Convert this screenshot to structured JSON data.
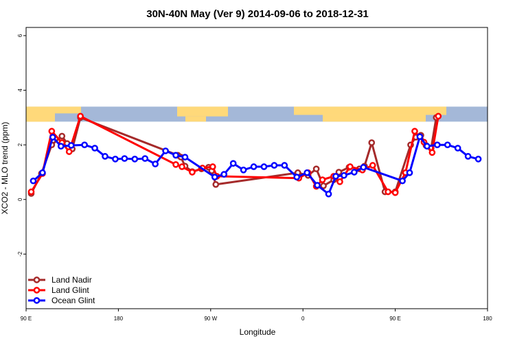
{
  "chart_data": {
    "type": "line",
    "title": "30N-40N May (Ver 9)   2014-09-06 to 2018-12-31",
    "xlabel": "Longitude",
    "ylabel": "XCO2 - MLO trend (ppm)",
    "xlim": [
      90,
      540
    ],
    "ylim": [
      -4,
      6.3
    ],
    "x_ticks": [
      {
        "value": 90,
        "label": "90 E"
      },
      {
        "value": 180,
        "label": "180"
      },
      {
        "value": 270,
        "label": "90 W"
      },
      {
        "value": 360,
        "label": "0"
      },
      {
        "value": 450,
        "label": "90 E"
      },
      {
        "value": 540,
        "label": "180"
      }
    ],
    "y_ticks": [
      {
        "value": -2,
        "label": "-2"
      },
      {
        "value": 0,
        "label": "0"
      },
      {
        "value": 2,
        "label": "2"
      },
      {
        "value": 4,
        "label": "4"
      },
      {
        "value": 6,
        "label": "6"
      }
    ],
    "legend_position": "bottom-left",
    "grid": false,
    "map_strip": {
      "y_from": 2.85,
      "y_to": 3.4,
      "ocean_color": "#a4b8d8",
      "land_color": "#ffd97a"
    },
    "series": [
      {
        "name": "Land Nadir",
        "color": "#a52a2a",
        "points": [
          [
            95,
            0.22
          ],
          [
            105,
            0.95
          ],
          [
            115,
            2.0
          ],
          [
            125,
            2.32
          ],
          [
            130,
            2.05
          ],
          [
            135,
            1.85
          ],
          [
            143,
            3.0
          ],
          [
            238,
            1.62
          ],
          [
            241,
            1.55
          ],
          [
            245,
            1.22
          ],
          [
            252,
            1.02
          ],
          [
            261,
            1.12
          ],
          [
            268,
            1.18
          ],
          [
            271,
            1.05
          ],
          [
            275,
            0.55
          ],
          [
            355,
            0.98
          ],
          [
            365,
            0.88
          ],
          [
            373,
            1.12
          ],
          [
            380,
            0.5
          ],
          [
            390,
            0.72
          ],
          [
            395,
            1.0
          ],
          [
            405,
            1.18
          ],
          [
            415,
            1.12
          ],
          [
            420,
            1.22
          ],
          [
            427,
            2.08
          ],
          [
            440,
            0.28
          ],
          [
            450,
            0.28
          ],
          [
            465,
            2.0
          ],
          [
            470,
            2.28
          ],
          [
            475,
            2.35
          ],
          [
            480,
            1.98
          ],
          [
            485,
            1.88
          ],
          [
            490,
            3.0
          ]
        ]
      },
      {
        "name": "Land Glint",
        "color": "#ff0000",
        "points": [
          [
            95,
            0.28
          ],
          [
            106,
            0.95
          ],
          [
            115,
            2.5
          ],
          [
            125,
            2.08
          ],
          [
            132,
            1.75
          ],
          [
            143,
            3.05
          ],
          [
            236,
            1.28
          ],
          [
            242,
            1.2
          ],
          [
            252,
            1.0
          ],
          [
            262,
            1.15
          ],
          [
            272,
            1.2
          ],
          [
            276,
            0.85
          ],
          [
            356,
            0.78
          ],
          [
            365,
            0.98
          ],
          [
            373,
            0.48
          ],
          [
            379,
            0.72
          ],
          [
            390,
            0.85
          ],
          [
            396,
            0.65
          ],
          [
            406,
            1.2
          ],
          [
            418,
            1.08
          ],
          [
            428,
            1.25
          ],
          [
            443,
            0.28
          ],
          [
            450,
            0.25
          ],
          [
            460,
            0.98
          ],
          [
            469,
            2.5
          ],
          [
            478,
            2.1
          ],
          [
            486,
            1.72
          ],
          [
            492,
            3.05
          ]
        ]
      },
      {
        "name": "Ocean Glint",
        "color": "#0000ff",
        "points": [
          [
            97,
            0.68
          ],
          [
            106,
            0.98
          ],
          [
            116,
            2.28
          ],
          [
            124,
            1.95
          ],
          [
            134,
            1.98
          ],
          [
            147,
            2.0
          ],
          [
            157,
            1.88
          ],
          [
            167,
            1.58
          ],
          [
            177,
            1.48
          ],
          [
            186,
            1.5
          ],
          [
            196,
            1.48
          ],
          [
            206,
            1.5
          ],
          [
            216,
            1.3
          ],
          [
            226,
            1.78
          ],
          [
            236,
            1.62
          ],
          [
            245,
            1.55
          ],
          [
            274,
            0.82
          ],
          [
            283,
            0.92
          ],
          [
            292,
            1.32
          ],
          [
            302,
            1.08
          ],
          [
            312,
            1.2
          ],
          [
            322,
            1.2
          ],
          [
            332,
            1.25
          ],
          [
            342,
            1.25
          ],
          [
            354,
            0.82
          ],
          [
            364,
            0.98
          ],
          [
            374,
            0.52
          ],
          [
            385,
            0.2
          ],
          [
            392,
            0.85
          ],
          [
            400,
            0.88
          ],
          [
            410,
            1.0
          ],
          [
            419,
            1.18
          ],
          [
            457,
            0.68
          ],
          [
            464,
            0.98
          ],
          [
            474,
            2.3
          ],
          [
            481,
            1.95
          ],
          [
            491,
            2.0
          ],
          [
            501,
            2.0
          ],
          [
            511,
            1.88
          ],
          [
            521,
            1.58
          ],
          [
            531,
            1.48
          ]
        ]
      }
    ]
  }
}
